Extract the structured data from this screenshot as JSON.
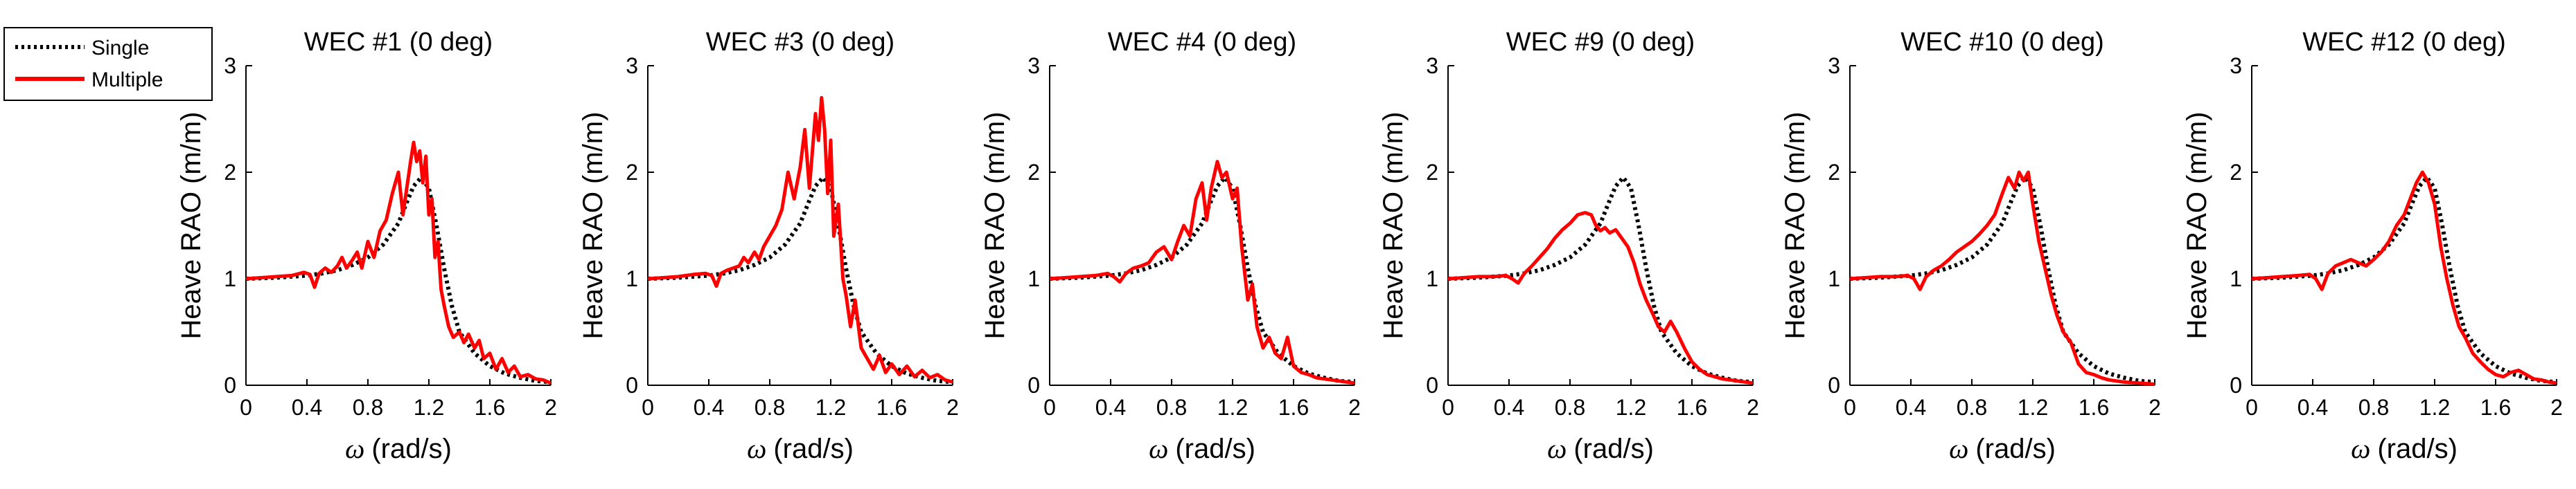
{
  "legend": {
    "entries": [
      {
        "label": "Single",
        "style": "dotted",
        "color": "#000000"
      },
      {
        "label": "Multiple",
        "style": "solid",
        "color": "#ff0000"
      }
    ]
  },
  "chart_data": [
    {
      "type": "line",
      "title": "WEC #1 (0 deg)",
      "xlabel_symbol": "ω",
      "xlabel_unit": "(rad/s)",
      "ylabel": "Heave RAO (m/m)",
      "xlim": [
        0,
        2
      ],
      "ylim": [
        0,
        3
      ],
      "xticks": [
        0,
        0.4,
        0.8,
        1.2,
        1.6,
        2
      ],
      "yticks": [
        0,
        1,
        2,
        3
      ],
      "series": [
        {
          "name": "Single",
          "color": "#000000",
          "style": "dotted",
          "x": [
            0,
            0.2,
            0.4,
            0.5,
            0.6,
            0.7,
            0.8,
            0.9,
            1.0,
            1.05,
            1.1,
            1.15,
            1.2,
            1.25,
            1.3,
            1.35,
            1.4,
            1.5,
            1.6,
            1.7,
            1.8,
            1.9,
            2.0
          ],
          "y": [
            1.0,
            1.01,
            1.03,
            1.05,
            1.08,
            1.13,
            1.2,
            1.32,
            1.52,
            1.7,
            1.87,
            1.95,
            1.85,
            1.5,
            1.1,
            0.75,
            0.5,
            0.3,
            0.18,
            0.11,
            0.07,
            0.04,
            0.03
          ]
        },
        {
          "name": "Multiple",
          "color": "#ff0000",
          "style": "solid",
          "x": [
            0,
            0.1,
            0.2,
            0.3,
            0.38,
            0.42,
            0.45,
            0.48,
            0.52,
            0.56,
            0.6,
            0.63,
            0.66,
            0.7,
            0.73,
            0.76,
            0.8,
            0.84,
            0.88,
            0.92,
            0.96,
            1.0,
            1.03,
            1.06,
            1.08,
            1.1,
            1.12,
            1.14,
            1.16,
            1.18,
            1.2,
            1.22,
            1.24,
            1.26,
            1.28,
            1.3,
            1.33,
            1.36,
            1.4,
            1.43,
            1.46,
            1.5,
            1.53,
            1.56,
            1.6,
            1.64,
            1.68,
            1.72,
            1.76,
            1.8,
            1.85,
            1.9,
            1.95,
            2.0
          ],
          "y": [
            1.0,
            1.01,
            1.02,
            1.03,
            1.06,
            1.04,
            0.92,
            1.05,
            1.1,
            1.06,
            1.12,
            1.2,
            1.1,
            1.18,
            1.25,
            1.1,
            1.35,
            1.2,
            1.45,
            1.55,
            1.8,
            2.0,
            1.6,
            1.9,
            2.1,
            2.28,
            2.1,
            2.2,
            1.9,
            2.15,
            1.6,
            1.75,
            1.2,
            1.35,
            0.9,
            0.75,
            0.55,
            0.45,
            0.5,
            0.4,
            0.48,
            0.35,
            0.42,
            0.25,
            0.3,
            0.15,
            0.25,
            0.12,
            0.18,
            0.08,
            0.1,
            0.06,
            0.05,
            0.02
          ]
        }
      ]
    },
    {
      "type": "line",
      "title": "WEC #3 (0 deg)",
      "xlabel_symbol": "ω",
      "xlabel_unit": "(rad/s)",
      "ylabel": "Heave RAO (m/m)",
      "xlim": [
        0,
        2
      ],
      "ylim": [
        0,
        3
      ],
      "xticks": [
        0,
        0.4,
        0.8,
        1.2,
        1.6,
        2
      ],
      "yticks": [
        0,
        1,
        2,
        3
      ],
      "series": [
        {
          "name": "Single",
          "color": "#000000",
          "style": "dotted",
          "x": [
            0,
            0.2,
            0.4,
            0.5,
            0.6,
            0.7,
            0.8,
            0.9,
            1.0,
            1.05,
            1.1,
            1.15,
            1.2,
            1.25,
            1.3,
            1.35,
            1.4,
            1.5,
            1.6,
            1.7,
            1.8,
            1.9,
            2.0
          ],
          "y": [
            1.0,
            1.01,
            1.03,
            1.05,
            1.08,
            1.13,
            1.2,
            1.32,
            1.52,
            1.7,
            1.87,
            1.95,
            1.85,
            1.5,
            1.1,
            0.75,
            0.5,
            0.3,
            0.18,
            0.11,
            0.07,
            0.04,
            0.03
          ]
        },
        {
          "name": "Multiple",
          "color": "#ff0000",
          "style": "solid",
          "x": [
            0,
            0.1,
            0.2,
            0.3,
            0.38,
            0.42,
            0.45,
            0.48,
            0.52,
            0.56,
            0.6,
            0.63,
            0.66,
            0.7,
            0.73,
            0.76,
            0.8,
            0.84,
            0.88,
            0.92,
            0.96,
            1.0,
            1.03,
            1.06,
            1.08,
            1.1,
            1.12,
            1.14,
            1.16,
            1.18,
            1.2,
            1.22,
            1.25,
            1.28,
            1.3,
            1.33,
            1.36,
            1.4,
            1.44,
            1.48,
            1.52,
            1.56,
            1.6,
            1.65,
            1.7,
            1.75,
            1.8,
            1.85,
            1.9,
            1.95,
            2.0
          ],
          "y": [
            1.0,
            1.01,
            1.02,
            1.04,
            1.05,
            1.03,
            0.93,
            1.05,
            1.08,
            1.1,
            1.12,
            1.2,
            1.15,
            1.25,
            1.18,
            1.3,
            1.4,
            1.5,
            1.65,
            2.0,
            1.75,
            2.05,
            2.4,
            1.85,
            2.2,
            2.55,
            2.3,
            2.7,
            2.4,
            1.8,
            2.3,
            1.4,
            1.7,
            1.0,
            0.85,
            0.55,
            0.8,
            0.35,
            0.25,
            0.15,
            0.28,
            0.12,
            0.2,
            0.1,
            0.18,
            0.08,
            0.14,
            0.07,
            0.1,
            0.05,
            0.03
          ]
        }
      ]
    },
    {
      "type": "line",
      "title": "WEC #4 (0 deg)",
      "xlabel_symbol": "ω",
      "xlabel_unit": "(rad/s)",
      "ylabel": "Heave RAO (m/m)",
      "xlim": [
        0,
        2
      ],
      "ylim": [
        0,
        3
      ],
      "xticks": [
        0,
        0.4,
        0.8,
        1.2,
        1.6,
        2
      ],
      "yticks": [
        0,
        1,
        2,
        3
      ],
      "series": [
        {
          "name": "Single",
          "color": "#000000",
          "style": "dotted",
          "x": [
            0,
            0.2,
            0.4,
            0.5,
            0.6,
            0.7,
            0.8,
            0.9,
            1.0,
            1.05,
            1.1,
            1.15,
            1.2,
            1.25,
            1.3,
            1.35,
            1.4,
            1.5,
            1.6,
            1.7,
            1.8,
            1.9,
            2.0
          ],
          "y": [
            1.0,
            1.01,
            1.03,
            1.05,
            1.08,
            1.13,
            1.2,
            1.32,
            1.52,
            1.7,
            1.87,
            1.95,
            1.85,
            1.5,
            1.1,
            0.75,
            0.5,
            0.3,
            0.18,
            0.11,
            0.07,
            0.04,
            0.03
          ]
        },
        {
          "name": "Multiple",
          "color": "#ff0000",
          "style": "solid",
          "x": [
            0,
            0.1,
            0.2,
            0.3,
            0.38,
            0.42,
            0.46,
            0.5,
            0.55,
            0.6,
            0.65,
            0.7,
            0.75,
            0.8,
            0.84,
            0.88,
            0.92,
            0.96,
            1.0,
            1.03,
            1.06,
            1.1,
            1.13,
            1.16,
            1.2,
            1.23,
            1.26,
            1.28,
            1.3,
            1.33,
            1.36,
            1.4,
            1.44,
            1.48,
            1.52,
            1.56,
            1.6,
            1.65,
            1.7,
            1.75,
            1.8,
            1.85,
            1.9,
            1.95,
            2.0
          ],
          "y": [
            1.0,
            1.01,
            1.02,
            1.03,
            1.05,
            1.02,
            0.97,
            1.05,
            1.1,
            1.12,
            1.15,
            1.25,
            1.3,
            1.18,
            1.35,
            1.5,
            1.4,
            1.75,
            1.9,
            1.55,
            1.85,
            2.1,
            1.95,
            2.0,
            1.75,
            1.85,
            1.3,
            1.05,
            0.8,
            0.95,
            0.55,
            0.35,
            0.45,
            0.3,
            0.25,
            0.45,
            0.18,
            0.12,
            0.1,
            0.07,
            0.06,
            0.05,
            0.04,
            0.03,
            0.02
          ]
        }
      ]
    },
    {
      "type": "line",
      "title": "WEC #9 (0 deg)",
      "xlabel_symbol": "ω",
      "xlabel_unit": "(rad/s)",
      "ylabel": "Heave RAO (m/m)",
      "xlim": [
        0,
        2
      ],
      "ylim": [
        0,
        3
      ],
      "xticks": [
        0,
        0.4,
        0.8,
        1.2,
        1.6,
        2
      ],
      "yticks": [
        0,
        1,
        2,
        3
      ],
      "series": [
        {
          "name": "Single",
          "color": "#000000",
          "style": "dotted",
          "x": [
            0,
            0.2,
            0.4,
            0.5,
            0.6,
            0.7,
            0.8,
            0.9,
            1.0,
            1.05,
            1.1,
            1.15,
            1.2,
            1.25,
            1.3,
            1.35,
            1.4,
            1.5,
            1.6,
            1.7,
            1.8,
            1.9,
            2.0
          ],
          "y": [
            1.0,
            1.01,
            1.03,
            1.05,
            1.08,
            1.13,
            1.2,
            1.32,
            1.52,
            1.7,
            1.87,
            1.95,
            1.85,
            1.5,
            1.1,
            0.75,
            0.5,
            0.3,
            0.18,
            0.11,
            0.07,
            0.04,
            0.03
          ]
        },
        {
          "name": "Multiple",
          "color": "#ff0000",
          "style": "solid",
          "x": [
            0,
            0.1,
            0.2,
            0.3,
            0.38,
            0.42,
            0.46,
            0.5,
            0.55,
            0.6,
            0.65,
            0.7,
            0.75,
            0.8,
            0.85,
            0.9,
            0.94,
            0.97,
            1.0,
            1.03,
            1.06,
            1.1,
            1.14,
            1.18,
            1.22,
            1.26,
            1.3,
            1.34,
            1.38,
            1.42,
            1.46,
            1.5,
            1.55,
            1.6,
            1.65,
            1.7,
            1.8,
            1.9,
            2.0
          ],
          "y": [
            1.0,
            1.01,
            1.02,
            1.02,
            1.03,
            1.0,
            0.96,
            1.05,
            1.12,
            1.2,
            1.28,
            1.38,
            1.46,
            1.52,
            1.6,
            1.62,
            1.6,
            1.5,
            1.45,
            1.48,
            1.43,
            1.46,
            1.38,
            1.3,
            1.15,
            0.95,
            0.8,
            0.68,
            0.55,
            0.5,
            0.6,
            0.5,
            0.35,
            0.22,
            0.15,
            0.1,
            0.06,
            0.04,
            0.02
          ]
        }
      ]
    },
    {
      "type": "line",
      "title": "WEC #10 (0 deg)",
      "xlabel_symbol": "ω",
      "xlabel_unit": "(rad/s)",
      "ylabel": "Heave RAO (m/m)",
      "xlim": [
        0,
        2
      ],
      "ylim": [
        0,
        3
      ],
      "xticks": [
        0,
        0.4,
        0.8,
        1.2,
        1.6,
        2
      ],
      "yticks": [
        0,
        1,
        2,
        3
      ],
      "series": [
        {
          "name": "Single",
          "color": "#000000",
          "style": "dotted",
          "x": [
            0,
            0.2,
            0.4,
            0.5,
            0.6,
            0.7,
            0.8,
            0.9,
            1.0,
            1.05,
            1.1,
            1.15,
            1.2,
            1.25,
            1.3,
            1.35,
            1.4,
            1.5,
            1.6,
            1.7,
            1.8,
            1.9,
            2.0
          ],
          "y": [
            1.0,
            1.01,
            1.03,
            1.05,
            1.08,
            1.13,
            1.2,
            1.32,
            1.52,
            1.7,
            1.87,
            1.95,
            1.85,
            1.5,
            1.1,
            0.75,
            0.5,
            0.3,
            0.18,
            0.11,
            0.07,
            0.04,
            0.03
          ]
        },
        {
          "name": "Multiple",
          "color": "#ff0000",
          "style": "solid",
          "x": [
            0,
            0.1,
            0.2,
            0.3,
            0.38,
            0.42,
            0.46,
            0.5,
            0.55,
            0.6,
            0.65,
            0.7,
            0.75,
            0.8,
            0.85,
            0.9,
            0.95,
            1.0,
            1.04,
            1.08,
            1.11,
            1.14,
            1.17,
            1.2,
            1.24,
            1.28,
            1.32,
            1.36,
            1.4,
            1.45,
            1.5,
            1.55,
            1.6,
            1.65,
            1.7,
            1.8,
            1.9,
            2.0
          ],
          "y": [
            1.0,
            1.01,
            1.02,
            1.02,
            1.03,
            1.0,
            0.9,
            1.02,
            1.08,
            1.12,
            1.18,
            1.25,
            1.3,
            1.35,
            1.42,
            1.5,
            1.6,
            1.8,
            1.95,
            1.85,
            2.0,
            1.92,
            2.0,
            1.7,
            1.35,
            1.1,
            0.85,
            0.65,
            0.5,
            0.4,
            0.2,
            0.12,
            0.1,
            0.07,
            0.05,
            0.03,
            0.02,
            0.01
          ]
        }
      ]
    },
    {
      "type": "line",
      "title": "WEC #12 (0 deg)",
      "xlabel_symbol": "ω",
      "xlabel_unit": "(rad/s)",
      "ylabel": "Heave RAO (m/m)",
      "xlim": [
        0,
        2
      ],
      "ylim": [
        0,
        3
      ],
      "xticks": [
        0,
        0.4,
        0.8,
        1.2,
        1.6,
        2
      ],
      "yticks": [
        0,
        1,
        2,
        3
      ],
      "series": [
        {
          "name": "Single",
          "color": "#000000",
          "style": "dotted",
          "x": [
            0,
            0.2,
            0.4,
            0.5,
            0.6,
            0.7,
            0.8,
            0.9,
            1.0,
            1.05,
            1.1,
            1.15,
            1.2,
            1.25,
            1.3,
            1.35,
            1.4,
            1.5,
            1.6,
            1.7,
            1.8,
            1.9,
            2.0
          ],
          "y": [
            1.0,
            1.01,
            1.03,
            1.05,
            1.08,
            1.13,
            1.2,
            1.32,
            1.52,
            1.7,
            1.87,
            1.95,
            1.85,
            1.5,
            1.1,
            0.75,
            0.5,
            0.3,
            0.18,
            0.11,
            0.07,
            0.04,
            0.03
          ]
        },
        {
          "name": "Multiple",
          "color": "#ff0000",
          "style": "solid",
          "x": [
            0,
            0.1,
            0.2,
            0.3,
            0.38,
            0.42,
            0.46,
            0.5,
            0.55,
            0.6,
            0.65,
            0.7,
            0.75,
            0.8,
            0.85,
            0.9,
            0.95,
            1.0,
            1.04,
            1.08,
            1.12,
            1.16,
            1.2,
            1.24,
            1.28,
            1.32,
            1.36,
            1.4,
            1.45,
            1.5,
            1.55,
            1.6,
            1.65,
            1.7,
            1.75,
            1.8,
            1.85,
            1.9,
            1.95,
            2.0
          ],
          "y": [
            1.0,
            1.01,
            1.02,
            1.03,
            1.04,
            1.0,
            0.9,
            1.05,
            1.12,
            1.15,
            1.18,
            1.15,
            1.12,
            1.18,
            1.25,
            1.35,
            1.5,
            1.6,
            1.75,
            1.9,
            2.0,
            1.9,
            1.7,
            1.3,
            1.0,
            0.75,
            0.55,
            0.45,
            0.3,
            0.22,
            0.15,
            0.1,
            0.08,
            0.12,
            0.14,
            0.1,
            0.06,
            0.05,
            0.03,
            0.02
          ]
        }
      ]
    }
  ]
}
